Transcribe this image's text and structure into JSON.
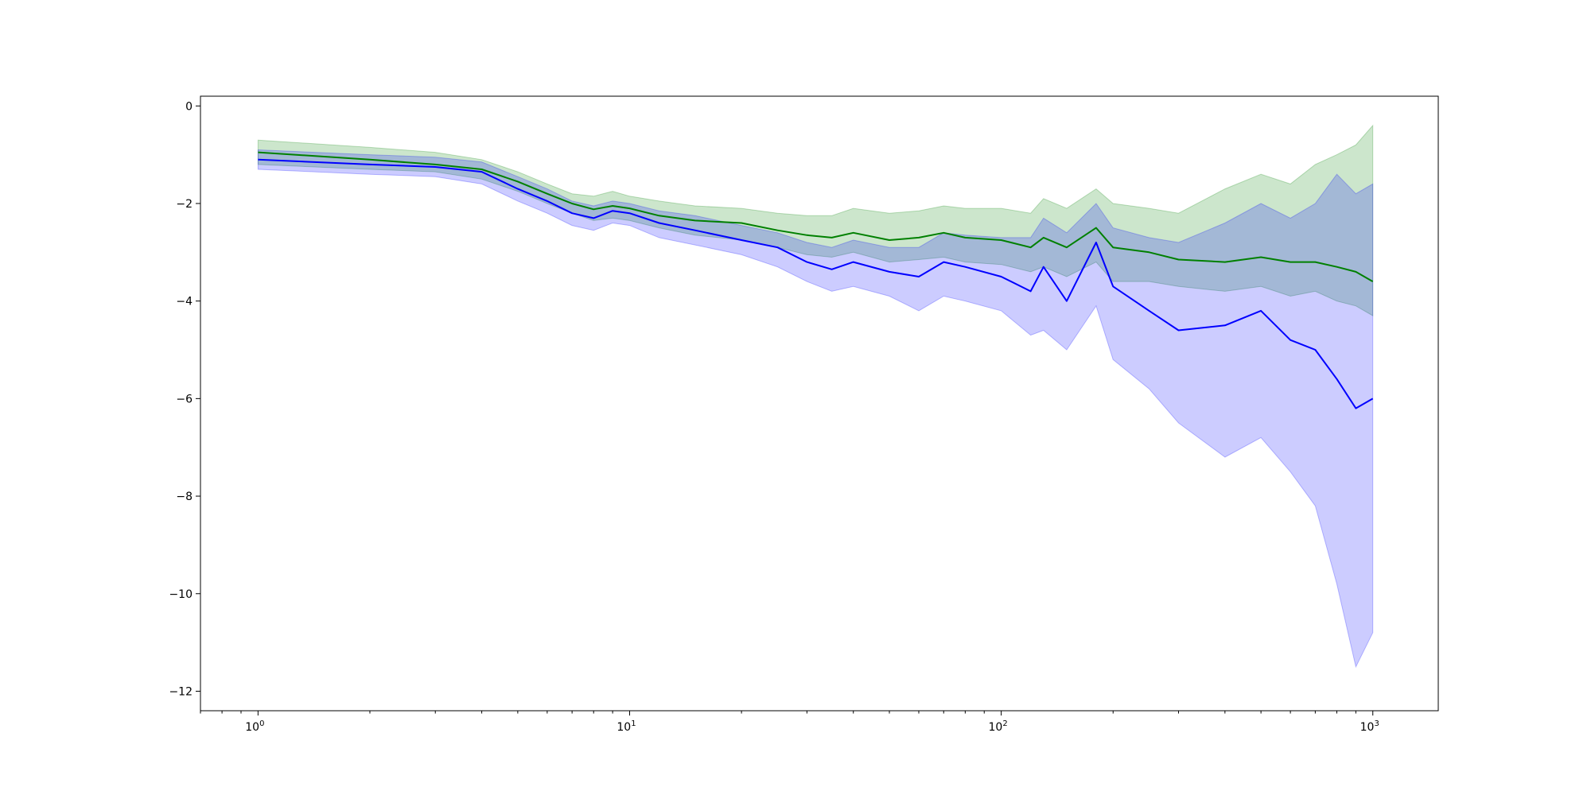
{
  "chart_data": {
    "type": "line",
    "title": "",
    "xlabel": "",
    "ylabel": "",
    "xscale": "log",
    "xlim": [
      0.7,
      1500
    ],
    "ylim": [
      -12.4,
      0.2
    ],
    "grid": false,
    "legend": "none",
    "x_ticks": [
      {
        "base": "10",
        "exp": "0",
        "value": 1
      },
      {
        "base": "10",
        "exp": "1",
        "value": 10
      },
      {
        "base": "10",
        "exp": "2",
        "value": 100
      },
      {
        "base": "10",
        "exp": "3",
        "value": 1000
      }
    ],
    "y_ticks": [
      {
        "label": "0",
        "value": 0
      },
      {
        "label": "−2",
        "value": -2
      },
      {
        "label": "−4",
        "value": -4
      },
      {
        "label": "−6",
        "value": -6
      },
      {
        "label": "−8",
        "value": -8
      },
      {
        "label": "−10",
        "value": -10
      },
      {
        "label": "−12",
        "value": -12
      }
    ],
    "series": [
      {
        "color": "#008000",
        "band_color": "#008000",
        "band_opacity": 0.2,
        "x": [
          1,
          2,
          3,
          4,
          5,
          6,
          7,
          8,
          9,
          10,
          12,
          15,
          20,
          25,
          30,
          35,
          40,
          50,
          60,
          70,
          80,
          100,
          120,
          130,
          150,
          180,
          200,
          250,
          300,
          400,
          500,
          600,
          700,
          800,
          900,
          1000
        ],
        "values": [
          -0.95,
          -1.1,
          -1.2,
          -1.3,
          -1.55,
          -1.8,
          -2.0,
          -2.12,
          -2.05,
          -2.1,
          -2.25,
          -2.35,
          -2.4,
          -2.55,
          -2.65,
          -2.7,
          -2.6,
          -2.75,
          -2.7,
          -2.6,
          -2.7,
          -2.75,
          -2.9,
          -2.7,
          -2.9,
          -2.5,
          -2.9,
          -3.0,
          -3.15,
          -3.2,
          -3.1,
          -3.2,
          -3.2,
          -3.3,
          -3.4,
          -3.6
        ],
        "lower": [
          -1.2,
          -1.3,
          -1.35,
          -1.5,
          -1.75,
          -2.0,
          -2.2,
          -2.35,
          -2.3,
          -2.35,
          -2.5,
          -2.65,
          -2.75,
          -2.9,
          -3.05,
          -3.1,
          -3.0,
          -3.2,
          -3.15,
          -3.1,
          -3.2,
          -3.25,
          -3.4,
          -3.3,
          -3.5,
          -3.2,
          -3.6,
          -3.6,
          -3.7,
          -3.8,
          -3.7,
          -3.9,
          -3.8,
          -4.0,
          -4.1,
          -4.3
        ],
        "upper": [
          -0.7,
          -0.85,
          -0.95,
          -1.1,
          -1.35,
          -1.6,
          -1.8,
          -1.85,
          -1.75,
          -1.85,
          -1.95,
          -2.05,
          -2.1,
          -2.2,
          -2.25,
          -2.25,
          -2.1,
          -2.2,
          -2.15,
          -2.05,
          -2.1,
          -2.1,
          -2.2,
          -1.9,
          -2.1,
          -1.7,
          -2.0,
          -2.1,
          -2.2,
          -1.7,
          -1.4,
          -1.6,
          -1.2,
          -1.0,
          -0.8,
          -0.4
        ]
      },
      {
        "color": "#0000ff",
        "band_color": "#0000ff",
        "band_opacity": 0.2,
        "x": [
          1,
          2,
          3,
          4,
          5,
          6,
          7,
          8,
          9,
          10,
          12,
          15,
          20,
          25,
          30,
          35,
          40,
          50,
          60,
          70,
          80,
          100,
          120,
          130,
          150,
          180,
          200,
          250,
          300,
          400,
          500,
          600,
          700,
          800,
          900,
          1000
        ],
        "values": [
          -1.1,
          -1.2,
          -1.25,
          -1.35,
          -1.7,
          -1.95,
          -2.2,
          -2.3,
          -2.15,
          -2.2,
          -2.4,
          -2.55,
          -2.75,
          -2.9,
          -3.2,
          -3.35,
          -3.2,
          -3.4,
          -3.5,
          -3.2,
          -3.3,
          -3.5,
          -3.8,
          -3.3,
          -4.0,
          -2.8,
          -3.7,
          -4.2,
          -4.6,
          -4.5,
          -4.2,
          -4.8,
          -5.0,
          -5.6,
          -6.2,
          -6.0
        ],
        "lower": [
          -1.3,
          -1.4,
          -1.45,
          -1.6,
          -1.95,
          -2.2,
          -2.45,
          -2.55,
          -2.4,
          -2.45,
          -2.7,
          -2.85,
          -3.05,
          -3.3,
          -3.6,
          -3.8,
          -3.7,
          -3.9,
          -4.2,
          -3.9,
          -4.0,
          -4.2,
          -4.7,
          -4.6,
          -5.0,
          -4.1,
          -5.2,
          -5.8,
          -6.5,
          -7.2,
          -6.8,
          -7.5,
          -8.2,
          -9.8,
          -11.5,
          -10.8
        ],
        "upper": [
          -0.9,
          -1.0,
          -1.05,
          -1.15,
          -1.45,
          -1.7,
          -1.95,
          -2.05,
          -1.95,
          -2.0,
          -2.15,
          -2.25,
          -2.45,
          -2.6,
          -2.8,
          -2.9,
          -2.75,
          -2.9,
          -2.9,
          -2.6,
          -2.65,
          -2.7,
          -2.7,
          -2.3,
          -2.6,
          -2.0,
          -2.5,
          -2.7,
          -2.8,
          -2.4,
          -2.0,
          -2.3,
          -2.0,
          -1.4,
          -1.8,
          -1.6
        ]
      }
    ]
  }
}
